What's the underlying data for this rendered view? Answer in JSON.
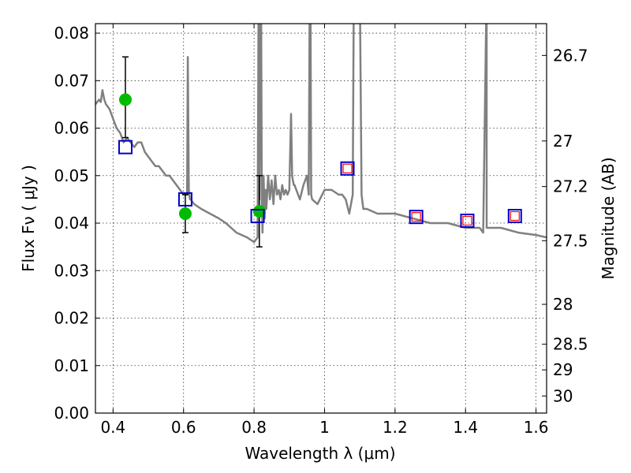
{
  "chart_data": {
    "type": "scatter",
    "xlabel": "Wavelength  λ (μm)",
    "ylabel": "Flux  Fν  ( μJy )",
    "ylabel_right": "Magnitude (AB)",
    "xlim": [
      0.35,
      1.63
    ],
    "ylim": [
      0.0,
      0.082
    ],
    "grid": true,
    "x_ticks": [
      0.4,
      0.6,
      0.8,
      1.0,
      1.2,
      1.4,
      1.6
    ],
    "x_tick_labels": [
      "0.4",
      "0.6",
      "0.8",
      "1",
      "1.2",
      "1.4",
      "1.6"
    ],
    "y_ticks": [
      0.0,
      0.01,
      0.02,
      0.03,
      0.04,
      0.05,
      0.06,
      0.07,
      0.08
    ],
    "y_tick_labels": [
      "0.00",
      "0.01",
      "0.02",
      "0.03",
      "0.04",
      "0.05",
      "0.06",
      "0.07",
      "0.08"
    ],
    "right_ticks": [
      {
        "flux": 0.0753,
        "label": "26.7"
      },
      {
        "flux": 0.0573,
        "label": "27"
      },
      {
        "flux": 0.0477,
        "label": "27.2"
      },
      {
        "flux": 0.0363,
        "label": "27.5"
      },
      {
        "flux": 0.0229,
        "label": "28"
      },
      {
        "flux": 0.0145,
        "label": "28.5"
      },
      {
        "flux": 0.0091,
        "label": "29"
      },
      {
        "flux": 0.0036,
        "label": "30"
      }
    ],
    "series": [
      {
        "style": "line",
        "color": "#808080",
        "x": [
          0.35,
          0.36,
          0.365,
          0.37,
          0.375,
          0.38,
          0.39,
          0.4,
          0.41,
          0.42,
          0.43,
          0.44,
          0.45,
          0.46,
          0.47,
          0.48,
          0.49,
          0.5,
          0.51,
          0.52,
          0.53,
          0.54,
          0.55,
          0.56,
          0.57,
          0.58,
          0.59,
          0.6,
          0.61,
          0.612,
          0.615,
          0.618,
          0.62,
          0.63,
          0.65,
          0.7,
          0.72,
          0.75,
          0.78,
          0.8,
          0.81,
          0.813,
          0.815,
          0.82,
          0.822,
          0.824,
          0.827,
          0.83,
          0.833,
          0.835,
          0.84,
          0.845,
          0.85,
          0.855,
          0.86,
          0.865,
          0.87,
          0.875,
          0.88,
          0.885,
          0.89,
          0.895,
          0.9,
          0.905,
          0.908,
          0.91,
          0.913,
          0.915,
          0.92,
          0.93,
          0.94,
          0.95,
          0.955,
          0.958,
          0.96,
          0.962,
          0.965,
          0.98,
          1.0,
          1.02,
          1.04,
          1.05,
          1.06,
          1.07,
          1.08,
          1.083,
          1.09,
          1.1,
          1.105,
          1.11,
          1.12,
          1.15,
          1.2,
          1.25,
          1.3,
          1.35,
          1.4,
          1.42,
          1.44,
          1.45,
          1.46,
          1.46,
          1.5,
          1.55,
          1.6,
          1.63
        ],
        "y": [
          0.065,
          0.066,
          0.0655,
          0.068,
          0.066,
          0.065,
          0.064,
          0.062,
          0.06,
          0.059,
          0.057,
          0.058,
          0.057,
          0.056,
          0.057,
          0.057,
          0.055,
          0.054,
          0.053,
          0.052,
          0.052,
          0.051,
          0.05,
          0.05,
          0.049,
          0.048,
          0.047,
          0.046,
          0.046,
          0.075,
          0.047,
          0.045,
          0.045,
          0.044,
          0.043,
          0.041,
          0.04,
          0.038,
          0.037,
          0.036,
          0.037,
          0.09,
          0.045,
          0.09,
          0.045,
          0.038,
          0.05,
          0.041,
          0.047,
          0.043,
          0.05,
          0.045,
          0.049,
          0.044,
          0.05,
          0.046,
          0.047,
          0.045,
          0.048,
          0.046,
          0.047,
          0.046,
          0.047,
          0.063,
          0.05,
          0.049,
          0.048,
          0.048,
          0.047,
          0.045,
          0.048,
          0.05,
          0.046,
          0.09,
          0.09,
          0.046,
          0.045,
          0.044,
          0.047,
          0.047,
          0.046,
          0.046,
          0.045,
          0.042,
          0.046,
          0.09,
          0.09,
          0.09,
          0.046,
          0.043,
          0.043,
          0.042,
          0.042,
          0.041,
          0.04,
          0.04,
          0.039,
          0.039,
          0.039,
          0.038,
          0.09,
          0.039,
          0.039,
          0.038,
          0.0375,
          0.037
        ]
      },
      {
        "style": "points",
        "marker": "circle",
        "color": "#00bb00",
        "x": [
          0.435,
          0.605,
          0.815
        ],
        "y": [
          0.066,
          0.042,
          0.0425
        ],
        "yerr_low": [
          0.058,
          0.038,
          0.035
        ],
        "yerr_high": [
          0.075,
          0.046,
          0.05
        ]
      },
      {
        "style": "points",
        "marker": "square-open",
        "color": "#0000cc",
        "x": [
          0.435,
          0.605,
          0.81,
          1.065,
          1.26,
          1.405,
          1.54
        ],
        "y": [
          0.056,
          0.045,
          0.0415,
          0.0515,
          0.0413,
          0.0405,
          0.0415
        ]
      },
      {
        "style": "points",
        "marker": "square-open-small",
        "color": "#ff0000",
        "x": [
          1.065,
          1.26,
          1.405,
          1.54
        ],
        "y": [
          0.0515,
          0.0413,
          0.0405,
          0.0415
        ]
      }
    ]
  }
}
